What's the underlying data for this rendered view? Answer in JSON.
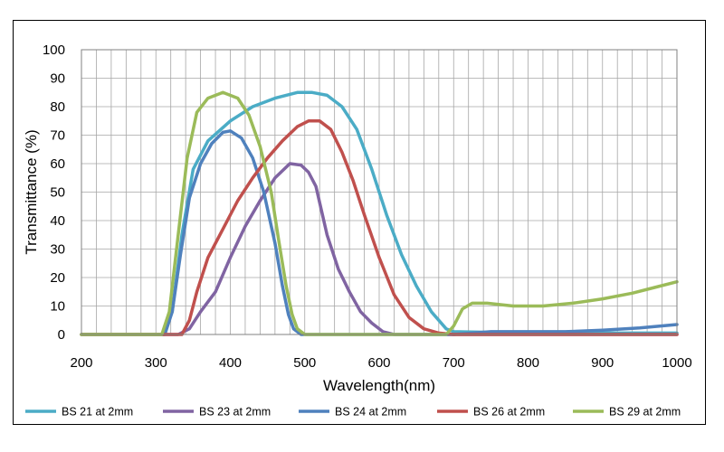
{
  "chart_data": {
    "type": "line",
    "title": "",
    "xlabel": "Wavelength(nm)",
    "ylabel": "Transmittance (%)",
    "xlim": [
      200,
      1000
    ],
    "ylim": [
      0,
      100
    ],
    "x_ticks": [
      "200",
      "300",
      "400",
      "500",
      "600",
      "700",
      "800",
      "900",
      "1000"
    ],
    "y_ticks": [
      "0",
      "10",
      "20",
      "30",
      "40",
      "50",
      "60",
      "70",
      "80",
      "90",
      "100"
    ],
    "grid": true,
    "legend_position": "bottom",
    "series": [
      {
        "name": "BS 21 at 2mm",
        "color": "#4bacc6",
        "points": [
          [
            200,
            0
          ],
          [
            310,
            0
          ],
          [
            322,
            8
          ],
          [
            335,
            35
          ],
          [
            350,
            58
          ],
          [
            370,
            68
          ],
          [
            400,
            75
          ],
          [
            430,
            80
          ],
          [
            460,
            83
          ],
          [
            490,
            85
          ],
          [
            510,
            85
          ],
          [
            530,
            84
          ],
          [
            550,
            80
          ],
          [
            570,
            72
          ],
          [
            590,
            58
          ],
          [
            610,
            42
          ],
          [
            630,
            28
          ],
          [
            650,
            17
          ],
          [
            670,
            8
          ],
          [
            690,
            2
          ],
          [
            700,
            1
          ],
          [
            800,
            0.5
          ],
          [
            1000,
            0.5
          ]
        ]
      },
      {
        "name": "BS 23 at 2mm",
        "color": "#8064a2",
        "points": [
          [
            200,
            0
          ],
          [
            330,
            0
          ],
          [
            345,
            2
          ],
          [
            360,
            8
          ],
          [
            380,
            15
          ],
          [
            400,
            27
          ],
          [
            420,
            38
          ],
          [
            440,
            47
          ],
          [
            460,
            55
          ],
          [
            480,
            60
          ],
          [
            495,
            59.5
          ],
          [
            505,
            57
          ],
          [
            515,
            52
          ],
          [
            530,
            35
          ],
          [
            545,
            23
          ],
          [
            560,
            15
          ],
          [
            575,
            8
          ],
          [
            590,
            4
          ],
          [
            605,
            1
          ],
          [
            620,
            0
          ],
          [
            700,
            0
          ],
          [
            1000,
            0
          ]
        ]
      },
      {
        "name": "BS 24 at 2mm",
        "color": "#4f81bd",
        "points": [
          [
            200,
            0
          ],
          [
            312,
            0
          ],
          [
            322,
            8
          ],
          [
            333,
            28
          ],
          [
            345,
            48
          ],
          [
            360,
            60
          ],
          [
            375,
            67
          ],
          [
            390,
            71
          ],
          [
            400,
            71.5
          ],
          [
            415,
            69
          ],
          [
            430,
            62
          ],
          [
            445,
            50
          ],
          [
            460,
            32
          ],
          [
            470,
            17
          ],
          [
            478,
            7
          ],
          [
            485,
            2
          ],
          [
            495,
            0
          ],
          [
            700,
            0
          ],
          [
            750,
            1
          ],
          [
            800,
            1
          ],
          [
            850,
            1
          ],
          [
            900,
            1.5
          ],
          [
            950,
            2.3
          ],
          [
            1000,
            3.5
          ]
        ]
      },
      {
        "name": "BS 26 at 2mm",
        "color": "#c0504d",
        "points": [
          [
            200,
            0
          ],
          [
            335,
            0
          ],
          [
            345,
            5
          ],
          [
            355,
            15
          ],
          [
            370,
            27
          ],
          [
            390,
            37
          ],
          [
            410,
            47
          ],
          [
            430,
            55
          ],
          [
            450,
            62
          ],
          [
            470,
            68
          ],
          [
            490,
            73
          ],
          [
            505,
            75
          ],
          [
            520,
            75
          ],
          [
            535,
            72
          ],
          [
            550,
            64
          ],
          [
            565,
            54
          ],
          [
            580,
            42
          ],
          [
            600,
            27
          ],
          [
            620,
            14
          ],
          [
            640,
            6
          ],
          [
            660,
            2
          ],
          [
            680,
            0.5
          ],
          [
            700,
            0
          ],
          [
            1000,
            0
          ]
        ]
      },
      {
        "name": "BS 29 at 2mm",
        "color": "#9bbb59",
        "points": [
          [
            200,
            0
          ],
          [
            308,
            0
          ],
          [
            318,
            8
          ],
          [
            330,
            35
          ],
          [
            342,
            62
          ],
          [
            355,
            78
          ],
          [
            370,
            83
          ],
          [
            390,
            85
          ],
          [
            410,
            83
          ],
          [
            425,
            77
          ],
          [
            440,
            66
          ],
          [
            455,
            50
          ],
          [
            465,
            33
          ],
          [
            475,
            17
          ],
          [
            483,
            7
          ],
          [
            490,
            2
          ],
          [
            500,
            0
          ],
          [
            690,
            0
          ],
          [
            700,
            3
          ],
          [
            712,
            9
          ],
          [
            725,
            11
          ],
          [
            745,
            11
          ],
          [
            780,
            10
          ],
          [
            820,
            10
          ],
          [
            860,
            11
          ],
          [
            900,
            12.5
          ],
          [
            940,
            14.5
          ],
          [
            970,
            16.5
          ],
          [
            1000,
            18.5
          ]
        ]
      }
    ]
  }
}
